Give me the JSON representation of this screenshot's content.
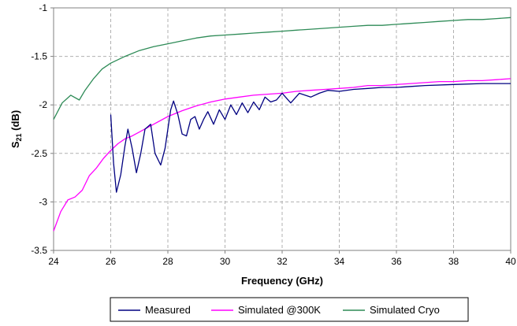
{
  "chart_data": {
    "type": "line",
    "xlabel": "Frequency (GHz)",
    "ylabel": {
      "main": "S",
      "sub": "21",
      "unit": " (dB)"
    },
    "xlim": [
      24,
      40
    ],
    "ylim": [
      -3.5,
      -1
    ],
    "xticks": [
      "24",
      "26",
      "28",
      "30",
      "32",
      "34",
      "36",
      "38",
      "40"
    ],
    "yticks": [
      "-1",
      "-1.5",
      "-2",
      "-2.5",
      "-3",
      "-3.5"
    ],
    "grid": "dashed",
    "legend_position": "bottom",
    "series": [
      {
        "name": "Measured",
        "color": "#000080",
        "x": [
          26.0,
          26.1,
          26.2,
          26.35,
          26.5,
          26.6,
          26.75,
          26.9,
          27.05,
          27.2,
          27.4,
          27.55,
          27.75,
          27.9,
          28.1,
          28.2,
          28.35,
          28.5,
          28.65,
          28.8,
          28.95,
          29.1,
          29.25,
          29.4,
          29.6,
          29.8,
          30.0,
          30.2,
          30.4,
          30.6,
          30.8,
          31.0,
          31.2,
          31.4,
          31.6,
          31.8,
          32.0,
          32.3,
          32.6,
          33.0,
          33.3,
          33.6,
          34.0,
          34.5,
          35.0,
          35.5,
          36.0,
          36.5,
          37.0,
          38.0,
          39.0,
          40.0
        ],
        "y": [
          -2.1,
          -2.6,
          -2.9,
          -2.72,
          -2.42,
          -2.25,
          -2.45,
          -2.7,
          -2.5,
          -2.25,
          -2.2,
          -2.5,
          -2.62,
          -2.45,
          -2.05,
          -1.96,
          -2.1,
          -2.3,
          -2.32,
          -2.15,
          -2.12,
          -2.25,
          -2.15,
          -2.07,
          -2.2,
          -2.05,
          -2.15,
          -2.0,
          -2.1,
          -1.98,
          -2.08,
          -1.97,
          -2.05,
          -1.92,
          -1.97,
          -1.95,
          -1.88,
          -1.98,
          -1.88,
          -1.92,
          -1.88,
          -1.85,
          -1.86,
          -1.84,
          -1.83,
          -1.82,
          -1.82,
          -1.81,
          -1.8,
          -1.79,
          -1.78,
          -1.78
        ]
      },
      {
        "name": "Simulated @300K",
        "color": "#ff00ff",
        "x": [
          24.0,
          24.25,
          24.5,
          24.75,
          25.0,
          25.25,
          25.5,
          25.75,
          26.0,
          26.25,
          26.5,
          26.75,
          27.0,
          27.5,
          28.0,
          28.5,
          29.0,
          29.5,
          30.0,
          30.5,
          31.0,
          31.5,
          32.0,
          32.5,
          33.0,
          33.5,
          34.0,
          34.5,
          35.0,
          35.5,
          36.0,
          36.5,
          37.0,
          37.5,
          38.0,
          38.5,
          39.0,
          39.5,
          40.0
        ],
        "y": [
          -3.3,
          -3.1,
          -2.98,
          -2.95,
          -2.88,
          -2.73,
          -2.65,
          -2.55,
          -2.47,
          -2.4,
          -2.35,
          -2.32,
          -2.28,
          -2.2,
          -2.12,
          -2.06,
          -2.01,
          -1.97,
          -1.94,
          -1.92,
          -1.9,
          -1.89,
          -1.88,
          -1.86,
          -1.85,
          -1.84,
          -1.83,
          -1.82,
          -1.8,
          -1.8,
          -1.79,
          -1.78,
          -1.77,
          -1.76,
          -1.76,
          -1.75,
          -1.75,
          -1.74,
          -1.73
        ]
      },
      {
        "name": "Simulated Cryo",
        "color": "#2e8b57",
        "x": [
          24.0,
          24.3,
          24.6,
          24.9,
          25.1,
          25.4,
          25.7,
          26.0,
          26.5,
          27.0,
          27.5,
          28.0,
          28.5,
          29.0,
          29.5,
          30.0,
          30.5,
          31.0,
          31.5,
          32.0,
          32.5,
          33.0,
          33.5,
          34.0,
          34.5,
          35.0,
          35.5,
          36.0,
          36.5,
          37.0,
          37.5,
          38.0,
          38.5,
          39.0,
          39.5,
          40.0
        ],
        "y": [
          -2.15,
          -1.98,
          -1.9,
          -1.95,
          -1.85,
          -1.73,
          -1.63,
          -1.57,
          -1.5,
          -1.44,
          -1.4,
          -1.37,
          -1.34,
          -1.31,
          -1.29,
          -1.28,
          -1.27,
          -1.26,
          -1.25,
          -1.24,
          -1.23,
          -1.22,
          -1.21,
          -1.2,
          -1.19,
          -1.18,
          -1.18,
          -1.17,
          -1.16,
          -1.15,
          -1.14,
          -1.13,
          -1.12,
          -1.12,
          -1.11,
          -1.1
        ]
      }
    ]
  }
}
